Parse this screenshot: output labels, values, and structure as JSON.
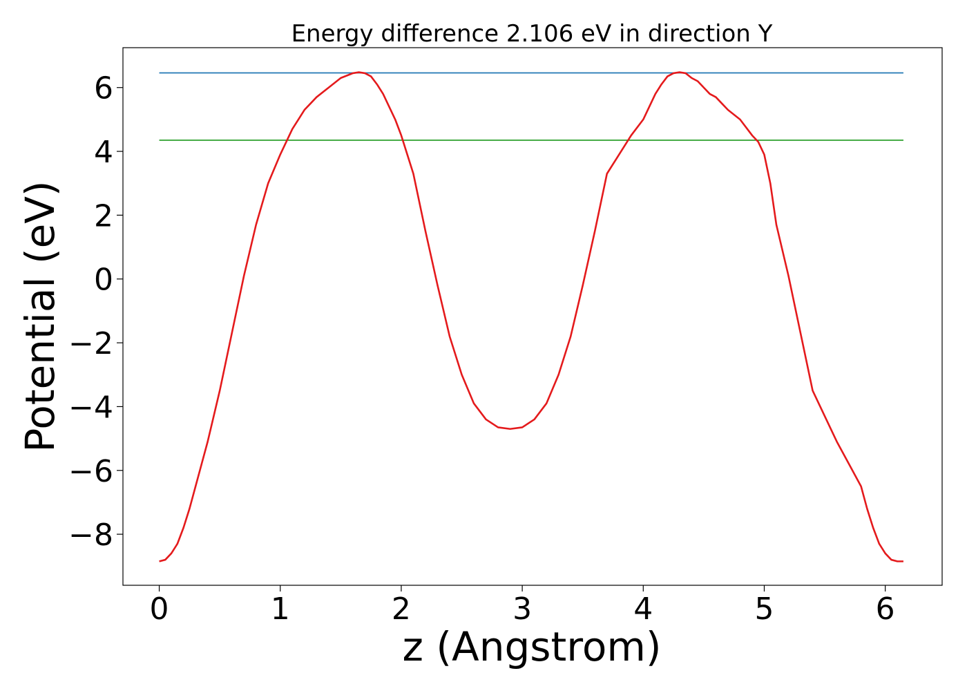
{
  "chart_data": {
    "type": "line",
    "title": "Energy difference 2.106 eV in direction Y",
    "xlabel": "z (Angstrom)",
    "ylabel": "Potential (eV)",
    "xlim": [
      -0.3,
      6.47
    ],
    "ylim": [
      -9.6,
      7.25
    ],
    "x_ticks": [
      0,
      1,
      2,
      3,
      4,
      5,
      6
    ],
    "x_tick_labels": [
      "0",
      "1",
      "2",
      "3",
      "4",
      "5",
      "6"
    ],
    "y_ticks": [
      -8,
      -6,
      -4,
      -2,
      0,
      2,
      4,
      6
    ],
    "y_tick_labels": [
      "−8",
      "−6",
      "−4",
      "−2",
      "0",
      "2",
      "4",
      "6"
    ],
    "grid": false,
    "series": [
      {
        "color": "#1f77b4",
        "x": [
          0,
          6.15
        ],
        "y": [
          6.46,
          6.46
        ]
      },
      {
        "color": "#2ca02c",
        "x": [
          0,
          6.15
        ],
        "y": [
          4.35,
          4.35
        ]
      },
      {
        "color": "#e41a1c",
        "x": [
          0,
          0.05,
          0.1,
          0.15,
          0.2,
          0.25,
          0.3,
          0.35,
          0.4,
          0.45,
          0.5,
          0.6,
          0.7,
          0.8,
          0.9,
          1.0,
          1.05,
          1.1,
          1.15,
          1.2,
          1.25,
          1.3,
          1.4,
          1.5,
          1.6,
          1.65,
          1.7,
          1.75,
          1.8,
          1.85,
          1.9,
          1.95,
          2.0,
          2.05,
          2.1,
          2.2,
          2.3,
          2.4,
          2.5,
          2.6,
          2.7,
          2.8,
          2.9,
          3.0,
          3.1,
          3.2,
          3.3,
          3.4,
          3.5,
          3.6,
          3.7,
          3.8,
          3.9,
          4.0,
          4.05,
          4.1,
          4.15,
          4.2,
          4.25,
          4.3,
          4.35,
          4.4,
          4.45,
          4.5,
          4.55,
          4.6,
          4.65,
          4.7,
          4.8,
          4.9,
          4.95,
          5.0,
          5.05,
          5.1,
          5.2,
          5.3,
          5.4,
          5.5,
          5.6,
          5.7,
          5.8,
          5.85,
          5.9,
          5.95,
          6.0,
          6.05,
          6.1,
          6.15
        ],
        "y": [
          -8.85,
          -8.8,
          -8.6,
          -8.3,
          -7.8,
          -7.2,
          -6.5,
          -5.8,
          -5.1,
          -4.3,
          -3.5,
          -1.7,
          0.1,
          1.7,
          3.0,
          3.9,
          4.3,
          4.7,
          5.0,
          5.3,
          5.5,
          5.7,
          6.0,
          6.3,
          6.45,
          6.48,
          6.45,
          6.35,
          6.1,
          5.8,
          5.4,
          5.0,
          4.5,
          3.9,
          3.3,
          1.5,
          -0.2,
          -1.8,
          -3.0,
          -3.9,
          -4.4,
          -4.65,
          -4.7,
          -4.65,
          -4.4,
          -3.9,
          -3.0,
          -1.8,
          -0.2,
          1.5,
          3.3,
          3.9,
          4.5,
          5.0,
          5.4,
          5.8,
          6.1,
          6.35,
          6.45,
          6.48,
          6.45,
          6.3,
          6.2,
          6.0,
          5.8,
          5.7,
          5.5,
          5.3,
          5.0,
          4.5,
          4.3,
          3.9,
          3.0,
          1.7,
          0.1,
          -1.7,
          -3.5,
          -4.3,
          -5.1,
          -5.8,
          -6.5,
          -7.2,
          -7.8,
          -8.3,
          -8.6,
          -8.8,
          -8.85,
          -8.85
        ]
      }
    ]
  }
}
